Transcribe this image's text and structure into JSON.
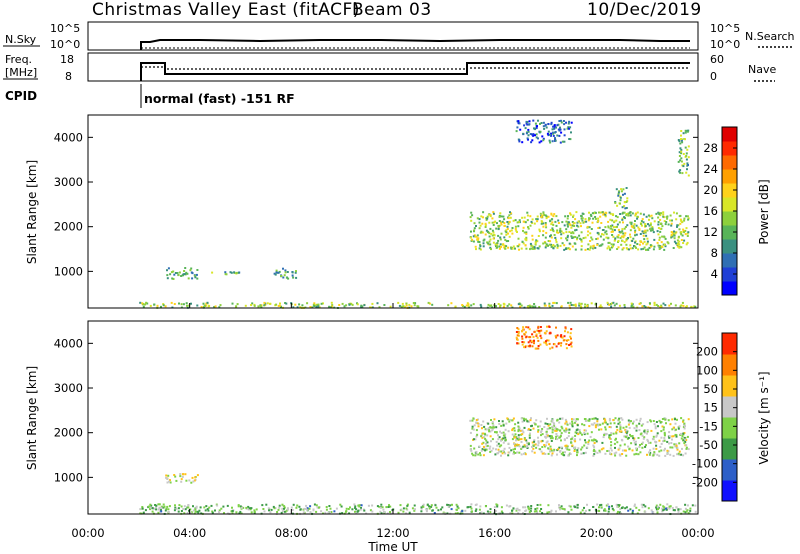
{
  "header": {
    "station": "Christmas Valley East (fitACF)",
    "beam": "Beam 03",
    "date": "10/Dec/2019"
  },
  "strips": {
    "nsky_label": "N.Sky",
    "nsearch_label": "N.Search",
    "nsky_ticks": [
      "10^5",
      "10^0"
    ],
    "nsearch_ticks": [
      "10^5",
      "10^0"
    ],
    "freq_label_top": "Freq.",
    "freq_label_unit": "[MHz]",
    "freq_ticks": [
      "18",
      "8"
    ],
    "nave_label": "Nave",
    "nave_ticks": [
      "60",
      "0"
    ],
    "cpid_label": "CPID",
    "cpid_value": "normal (fast) -151 RF"
  },
  "chart_data": [
    {
      "type": "heatmap",
      "name": "power-panel",
      "ylabel": "Slant Range [km]",
      "yticks": [
        "4000",
        "3000",
        "2000",
        "1000"
      ],
      "colorbar_label": "Power [dB]",
      "colorbar_ticks": [
        "28",
        "24",
        "20",
        "16",
        "12",
        "8",
        "4"
      ],
      "colorscale": [
        "#0000ff",
        "#1f3fd6",
        "#2f6fb4",
        "#3a9080",
        "#58b458",
        "#8dd03c",
        "#d8e628",
        "#ffd21a",
        "#ffa000",
        "#ff6a00",
        "#ff2a00",
        "#e00000"
      ],
      "range": [
        0,
        30
      ],
      "ylim": [
        180,
        4500
      ],
      "xlim": [
        0,
        24
      ],
      "echo_regions": [
        {
          "t0": 2.0,
          "t1": 23.9,
          "r0": 200,
          "r1": 320,
          "val": 14
        },
        {
          "t0": 3.0,
          "t1": 4.3,
          "r0": 850,
          "r1": 1100,
          "val": 10
        },
        {
          "t0": 4.7,
          "t1": 6.0,
          "r0": 950,
          "r1": 1020,
          "val": 12
        },
        {
          "t0": 7.3,
          "t1": 8.2,
          "r0": 850,
          "r1": 1100,
          "val": 10
        },
        {
          "t0": 15.0,
          "t1": 23.6,
          "r0": 1500,
          "r1": 2350,
          "val": 14
        },
        {
          "t0": 16.8,
          "t1": 19.0,
          "r0": 3900,
          "r1": 4400,
          "val": 6
        },
        {
          "t0": 20.7,
          "t1": 21.2,
          "r0": 2400,
          "r1": 2900,
          "val": 12
        },
        {
          "t0": 23.2,
          "t1": 23.6,
          "r0": 3100,
          "r1": 4200,
          "val": 12
        }
      ]
    },
    {
      "type": "heatmap",
      "name": "velocity-panel",
      "ylabel": "Slant Range [km]",
      "yticks": [
        "4000",
        "3000",
        "2000",
        "1000"
      ],
      "colorbar_label": "Velocity [m s⁻¹]",
      "colorbar_ticks": [
        "200",
        "100",
        "50",
        "15",
        "-15",
        "-50",
        "-100",
        "-200"
      ],
      "colorscale": [
        "#1010ff",
        "#2d5fc8",
        "#3c9a46",
        "#7ed247",
        "#c8c8c8",
        "#ffc21a",
        "#ff8000",
        "#ff2a00"
      ],
      "range": [
        -250,
        250
      ],
      "ylim": [
        180,
        4500
      ],
      "xlim": [
        0,
        24
      ],
      "echo_regions": [
        {
          "t0": 2.0,
          "t1": 23.9,
          "r0": 200,
          "r1": 420,
          "val": -40
        },
        {
          "t0": 3.0,
          "t1": 4.3,
          "r0": 900,
          "r1": 1100,
          "val": 40
        },
        {
          "t0": 15.0,
          "t1": 23.6,
          "r0": 1500,
          "r1": 2350,
          "val": 0
        },
        {
          "t0": 16.8,
          "t1": 19.0,
          "r0": 3900,
          "r1": 4400,
          "val": 150
        }
      ]
    }
  ],
  "xaxis": {
    "ticks": [
      "00:00",
      "04:00",
      "08:00",
      "12:00",
      "16:00",
      "20:00",
      "00:00"
    ],
    "label": "Time UT"
  }
}
